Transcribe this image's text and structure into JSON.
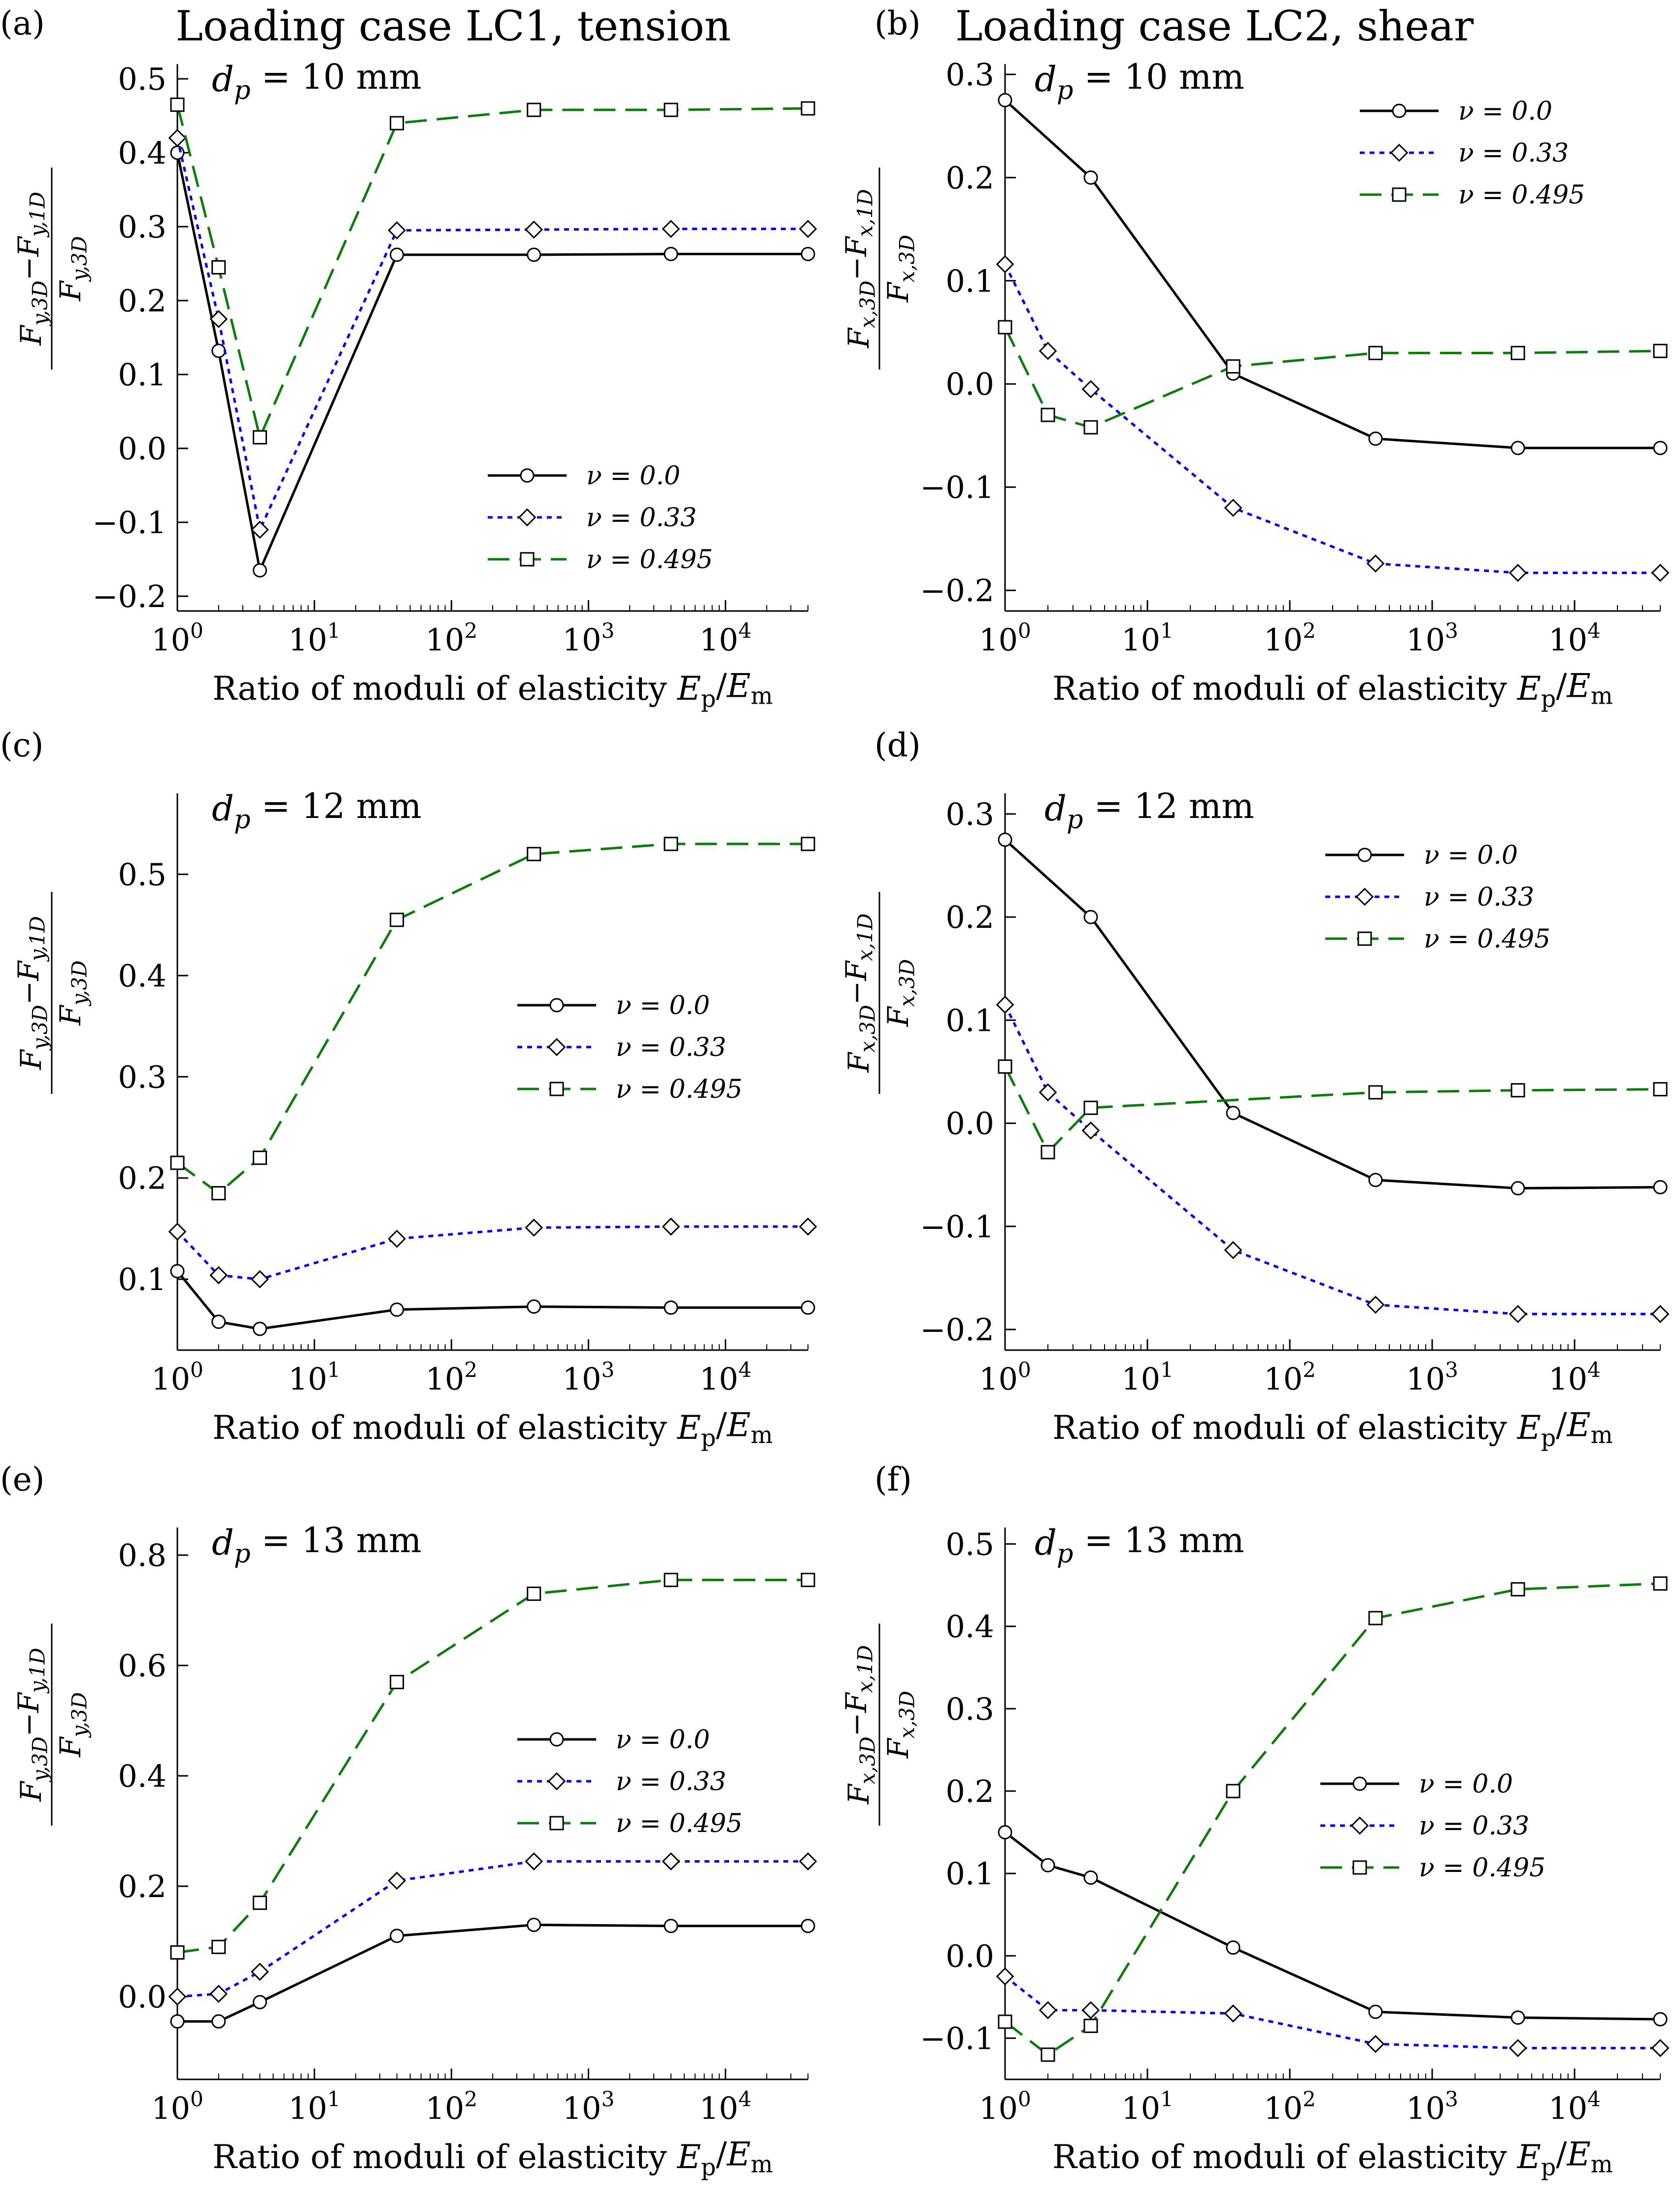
{
  "figure": {
    "column_titles": [
      "Loading case LC1, tension",
      "Loading case LC2, shear"
    ]
  },
  "colors": {
    "nu_0": "#000000",
    "nu_033": "#0000ee",
    "nu_0495": "#0a7d0a"
  },
  "chart_data": [
    {
      "panel": "(a)",
      "type": "line",
      "load_case": "tension",
      "annotation": "dp = 10 mm",
      "xlabel": "Ratio of moduli of elasticity Ep/Em",
      "ylabel": "(Fy,3D − Fy,1D) / Fy,3D",
      "x": [
        1,
        2,
        4,
        40,
        400,
        4000,
        40000
      ],
      "x_scale": "log",
      "xlim": [
        1,
        40000
      ],
      "xticks": [
        1,
        10,
        100,
        1000,
        10000
      ],
      "ylim": [
        -0.22,
        0.52
      ],
      "yticks": [
        -0.2,
        -0.1,
        0.0,
        0.1,
        0.2,
        0.3,
        0.4,
        0.5
      ],
      "yticklabels": [
        "−0.2",
        "−0.1",
        "0.0",
        "0.1",
        "0.2",
        "0.3",
        "0.4",
        "0.5"
      ],
      "legend_position": "lower-right",
      "series": [
        {
          "name": "ν = 0.0",
          "marker": "circle",
          "values": [
            0.4,
            0.132,
            -0.165,
            0.262,
            0.262,
            0.263,
            0.263
          ]
        },
        {
          "name": "ν = 0.33",
          "marker": "diamond",
          "values": [
            0.42,
            0.175,
            -0.11,
            0.295,
            0.296,
            0.297,
            0.297
          ]
        },
        {
          "name": "ν = 0.495",
          "marker": "square",
          "values": [
            0.465,
            0.245,
            0.015,
            0.44,
            0.458,
            0.458,
            0.46
          ]
        }
      ]
    },
    {
      "panel": "(b)",
      "type": "line",
      "load_case": "shear",
      "annotation": "dp = 10 mm",
      "xlabel": "Ratio of moduli of elasticity Ep/Em",
      "ylabel": "(Fx,3D − Fx,1D) / Fx,3D",
      "x": [
        1,
        2,
        4,
        40,
        400,
        4000,
        40000
      ],
      "x_scale": "log",
      "xlim": [
        1,
        40000
      ],
      "xticks": [
        1,
        10,
        100,
        1000,
        10000
      ],
      "ylim": [
        -0.22,
        0.31
      ],
      "yticks": [
        -0.2,
        -0.1,
        0.0,
        0.1,
        0.2,
        0.3
      ],
      "yticklabels": [
        "−0.2",
        "−0.1",
        "0.0",
        "0.1",
        "0.2",
        "0.3"
      ],
      "legend_position": "upper-right",
      "series": [
        {
          "name": "ν = 0.0",
          "marker": "circle",
          "values": [
            0.275,
            null,
            0.2,
            0.01,
            -0.053,
            -0.062,
            -0.062
          ]
        },
        {
          "name": "ν = 0.33",
          "marker": "diamond",
          "values": [
            0.116,
            0.032,
            -0.005,
            -0.12,
            -0.174,
            -0.183,
            -0.183
          ]
        },
        {
          "name": "ν = 0.495",
          "marker": "square",
          "values": [
            0.055,
            -0.03,
            -0.042,
            0.017,
            0.03,
            0.03,
            0.032
          ]
        }
      ]
    },
    {
      "panel": "(c)",
      "type": "line",
      "load_case": "tension",
      "annotation": "dp = 12 mm",
      "xlabel": "Ratio of moduli of elasticity Ep/Em",
      "ylabel": "(Fy,3D − Fy,1D) / Fy,3D",
      "x": [
        1,
        2,
        4,
        40,
        400,
        4000,
        40000
      ],
      "x_scale": "log",
      "xlim": [
        1,
        40000
      ],
      "xticks": [
        1,
        10,
        100,
        1000,
        10000
      ],
      "ylim": [
        0.03,
        0.58
      ],
      "yticks": [
        0.1,
        0.2,
        0.3,
        0.4,
        0.5
      ],
      "yticklabels": [
        "0.1",
        "0.2",
        "0.3",
        "0.4",
        "0.5"
      ],
      "legend_position": "center-right",
      "series": [
        {
          "name": "ν = 0.0",
          "marker": "circle",
          "values": [
            0.108,
            0.058,
            0.051,
            0.07,
            0.073,
            0.072,
            0.072
          ]
        },
        {
          "name": "ν = 0.33",
          "marker": "diamond",
          "values": [
            0.147,
            0.104,
            0.1,
            0.14,
            0.151,
            0.152,
            0.152
          ]
        },
        {
          "name": "ν = 0.495",
          "marker": "square",
          "values": [
            0.215,
            0.185,
            0.22,
            0.455,
            0.52,
            0.53,
            0.53
          ]
        }
      ]
    },
    {
      "panel": "(d)",
      "type": "line",
      "load_case": "shear",
      "annotation": "dp = 12 mm",
      "xlabel": "Ratio of moduli of elasticity Ep/Em",
      "ylabel": "(Fx,3D − Fx,1D) / Fx,3D",
      "x": [
        1,
        2,
        4,
        40,
        400,
        4000,
        40000
      ],
      "x_scale": "log",
      "xlim": [
        1,
        40000
      ],
      "xticks": [
        1,
        10,
        100,
        1000,
        10000
      ],
      "ylim": [
        -0.22,
        0.32
      ],
      "yticks": [
        -0.2,
        -0.1,
        0.0,
        0.1,
        0.2,
        0.3
      ],
      "yticklabels": [
        "−0.2",
        "−0.1",
        "0.0",
        "0.1",
        "0.2",
        "0.3"
      ],
      "legend_position": "upper-right",
      "series": [
        {
          "name": "ν = 0.0",
          "marker": "circle",
          "values": [
            0.275,
            null,
            0.2,
            0.01,
            -0.055,
            -0.063,
            -0.062
          ]
        },
        {
          "name": "ν = 0.33",
          "marker": "diamond",
          "values": [
            0.115,
            0.03,
            -0.007,
            -0.123,
            -0.176,
            -0.185,
            -0.185
          ]
        },
        {
          "name": "ν = 0.495",
          "marker": "square",
          "values": [
            0.055,
            -0.028,
            0.015,
            null,
            0.03,
            0.032,
            0.033
          ]
        }
      ]
    },
    {
      "panel": "(e)",
      "type": "line",
      "load_case": "tension",
      "annotation": "dp = 13 mm",
      "xlabel": "Ratio of moduli of elasticity Ep/Em",
      "ylabel": "(Fy,3D − Fy,1D) / Fy,3D",
      "x": [
        1,
        2,
        4,
        40,
        400,
        4000,
        40000
      ],
      "x_scale": "log",
      "xlim": [
        1,
        40000
      ],
      "xticks": [
        1,
        10,
        100,
        1000,
        10000
      ],
      "ylim": [
        -0.15,
        0.85
      ],
      "yticks": [
        0.0,
        0.2,
        0.4,
        0.6,
        0.8
      ],
      "yticklabels": [
        "0.0",
        "0.2",
        "0.4",
        "0.6",
        "0.8"
      ],
      "legend_position": "center-right",
      "series": [
        {
          "name": "ν = 0.0",
          "marker": "circle",
          "values": [
            -0.045,
            -0.045,
            -0.01,
            0.11,
            0.13,
            0.128,
            0.128
          ]
        },
        {
          "name": "ν = 0.33",
          "marker": "diamond",
          "values": [
            0.0,
            0.005,
            0.045,
            0.21,
            0.245,
            0.245,
            0.245
          ]
        },
        {
          "name": "ν = 0.495",
          "marker": "square",
          "values": [
            0.08,
            0.09,
            0.17,
            0.57,
            0.73,
            0.755,
            0.755
          ]
        }
      ]
    },
    {
      "panel": "(f)",
      "type": "line",
      "load_case": "shear",
      "annotation": "dp = 13 mm",
      "xlabel": "Ratio of moduli of elasticity Ep/Em",
      "ylabel": "(Fx,3D − Fx,1D) / Fx,3D",
      "x": [
        1,
        2,
        4,
        40,
        400,
        4000,
        40000
      ],
      "x_scale": "log",
      "xlim": [
        1,
        40000
      ],
      "xticks": [
        1,
        10,
        100,
        1000,
        10000
      ],
      "ylim": [
        -0.15,
        0.52
      ],
      "yticks": [
        -0.1,
        0.0,
        0.1,
        0.2,
        0.3,
        0.4,
        0.5
      ],
      "yticklabels": [
        "−0.1",
        "0.0",
        "0.1",
        "0.2",
        "0.3",
        "0.4",
        "0.5"
      ],
      "legend_position": "center-right",
      "series": [
        {
          "name": "ν = 0.0",
          "marker": "circle",
          "values": [
            0.15,
            0.11,
            0.095,
            0.01,
            -0.068,
            -0.075,
            -0.077
          ]
        },
        {
          "name": "ν = 0.33",
          "marker": "diamond",
          "values": [
            -0.025,
            -0.066,
            -0.066,
            -0.07,
            -0.107,
            -0.112,
            -0.112
          ]
        },
        {
          "name": "ν = 0.495",
          "marker": "square",
          "values": [
            -0.08,
            -0.12,
            -0.085,
            0.2,
            0.41,
            0.445,
            0.452
          ]
        }
      ]
    }
  ]
}
